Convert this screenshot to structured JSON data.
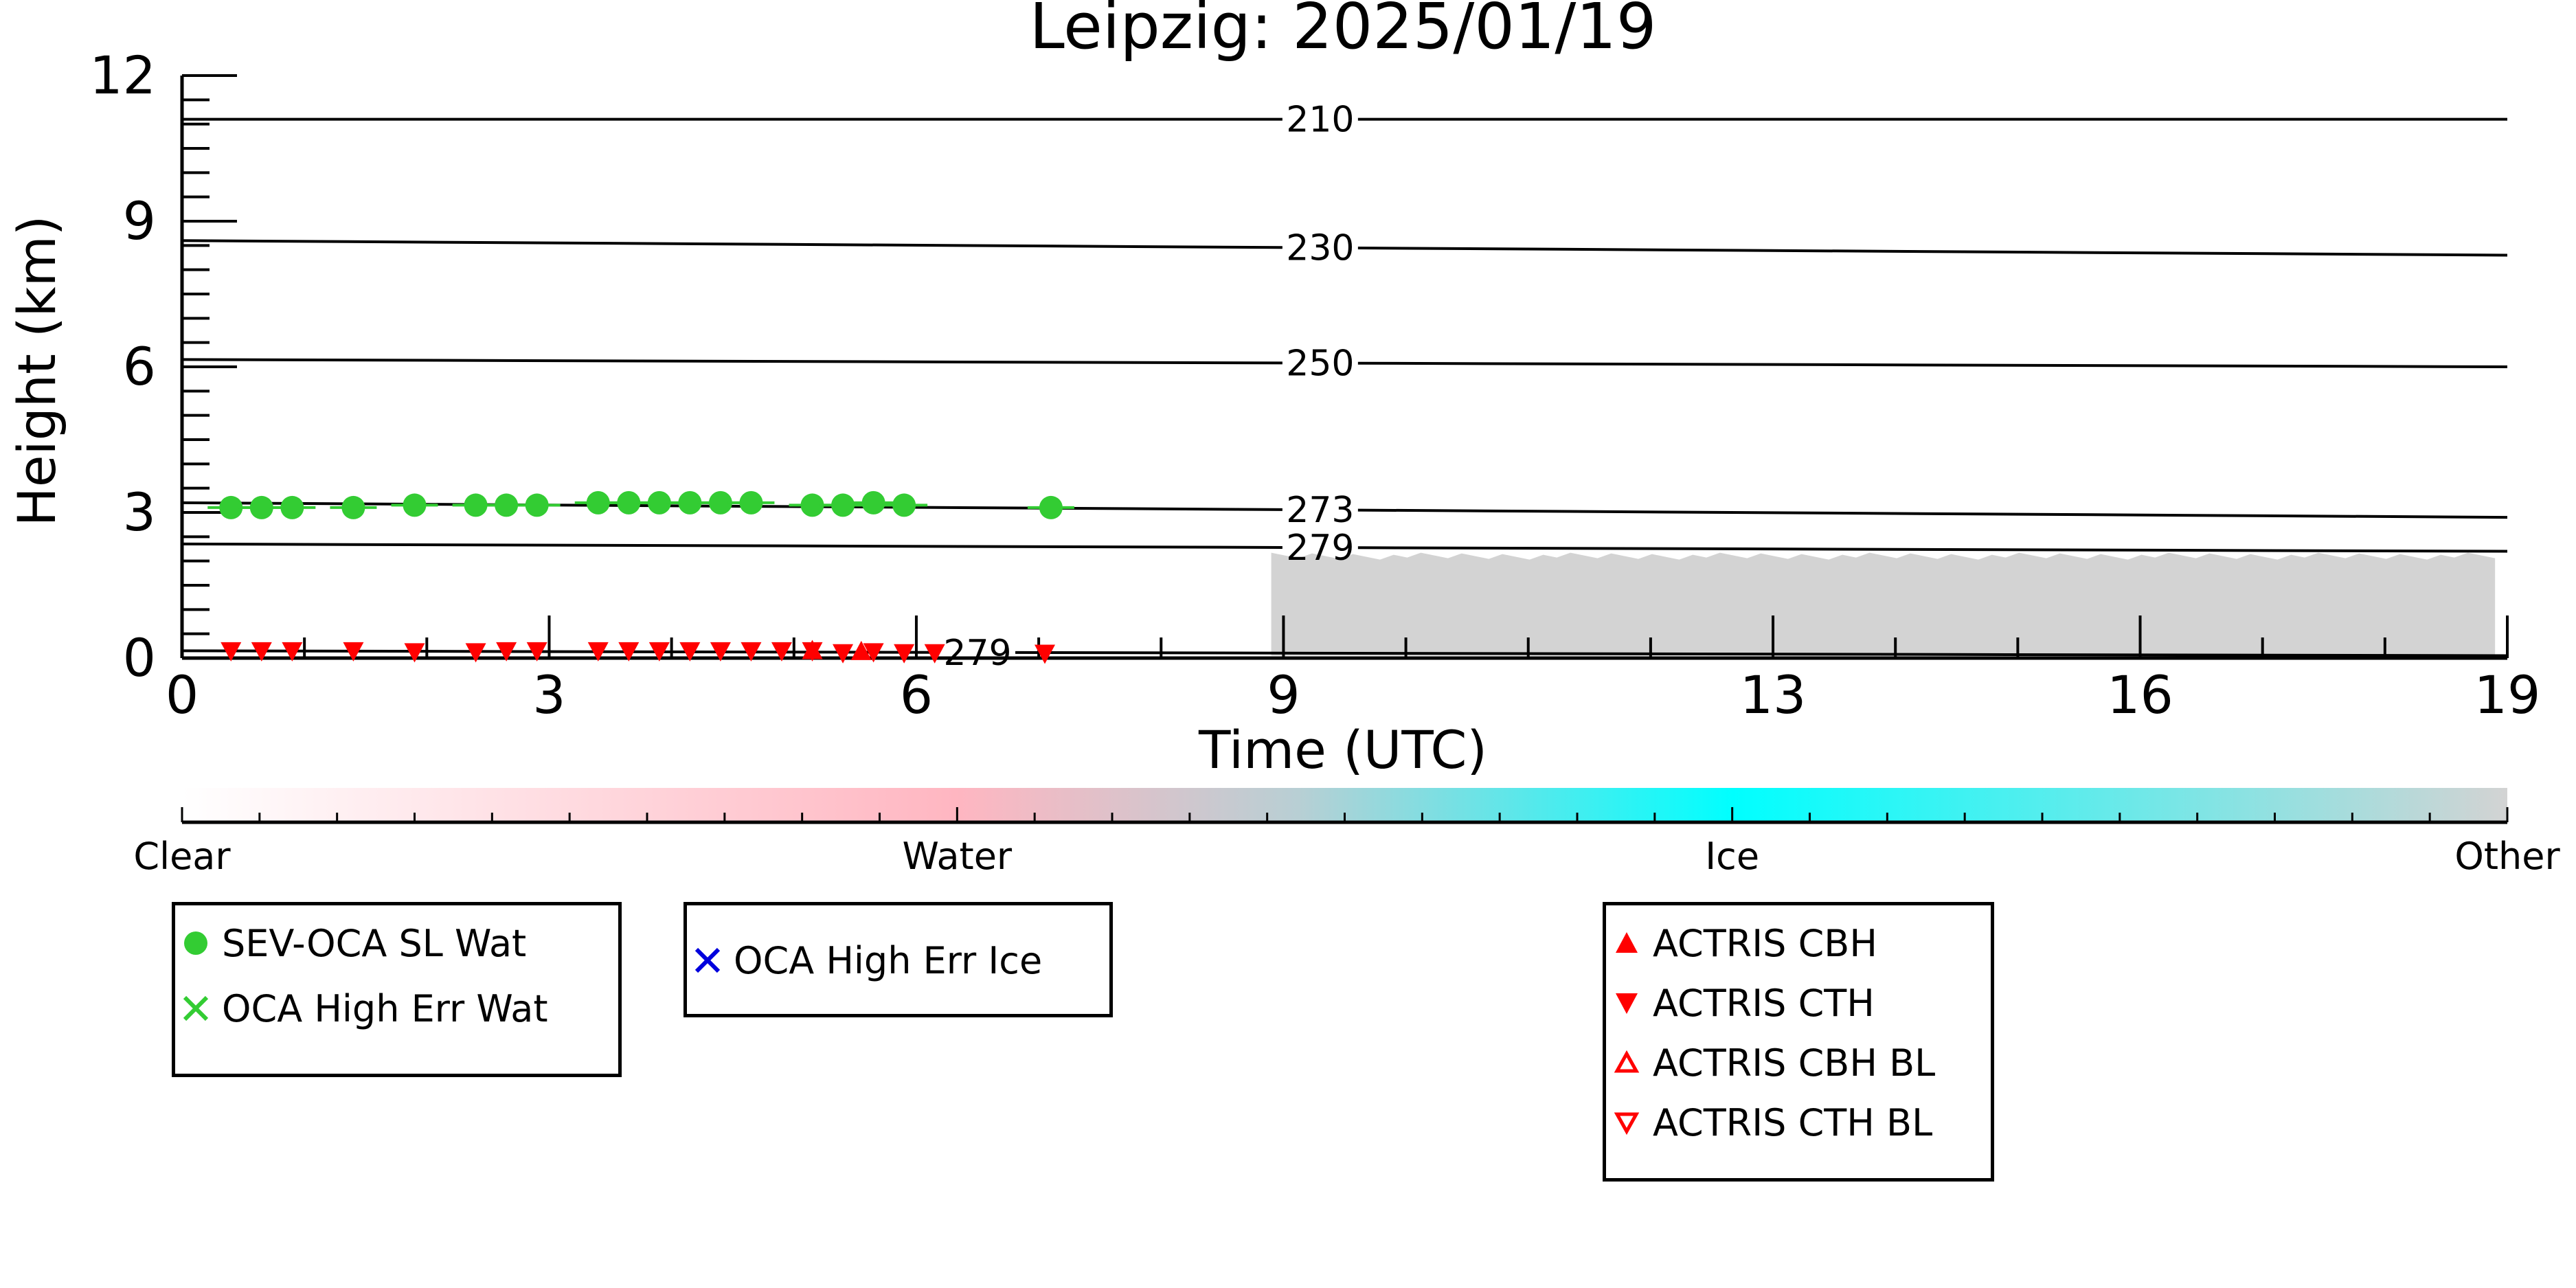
{
  "chart_data": {
    "type": "scatter",
    "title": "Leipzig: 2025/01/19",
    "xlabel": "Time (UTC)",
    "ylabel": "Height (km)",
    "xlim": [
      0,
      19
    ],
    "ylim": [
      0,
      12
    ],
    "x_ticks": [
      0,
      3,
      6,
      9,
      13,
      16,
      19
    ],
    "y_ticks": [
      0,
      3,
      6,
      9,
      12
    ],
    "grid": false,
    "isotherms": [
      {
        "label": "210",
        "y_start": 11.1,
        "y_end": 11.1,
        "label_x": 9.3
      },
      {
        "label": "230",
        "y_start": 8.6,
        "y_end": 8.3,
        "label_x": 9.3
      },
      {
        "label": "250",
        "y_start": 6.15,
        "y_end": 6.0,
        "label_x": 9.3
      },
      {
        "label": "273",
        "y_start": 3.2,
        "y_end": 2.9,
        "label_x": 9.3
      },
      {
        "label": "279",
        "y_start": 2.35,
        "y_end": 2.2,
        "label_x": 9.3
      },
      {
        "label": "279",
        "y_start": 0.15,
        "y_end": 0.05,
        "label_x": 6.5
      }
    ],
    "cloud_mask": {
      "category": "Other",
      "x_start": 8.9,
      "x_end": 18.9,
      "y_bottom": 0.05,
      "y_top": 2.1
    },
    "series": [
      {
        "name": "SEV-OCA SL Wat",
        "color": "#33cc33",
        "marker": "circle",
        "x": [
          0.4,
          0.65,
          0.9,
          1.4,
          1.9,
          2.4,
          2.65,
          2.9,
          3.4,
          3.65,
          3.9,
          4.15,
          4.4,
          4.65,
          5.15,
          5.4,
          5.65,
          5.9,
          7.1
        ],
        "y": [
          3.1,
          3.1,
          3.1,
          3.1,
          3.15,
          3.15,
          3.15,
          3.15,
          3.2,
          3.2,
          3.2,
          3.2,
          3.2,
          3.2,
          3.15,
          3.15,
          3.2,
          3.15,
          3.1
        ]
      },
      {
        "name": "OCA High Err Wat",
        "color": "#33cc33",
        "marker": "x",
        "x": [],
        "y": []
      },
      {
        "name": "OCA High Err Ice",
        "color": "#0000dd",
        "marker": "x",
        "x": [],
        "y": []
      },
      {
        "name": "ACTRIS CBH",
        "color": "#ff0000",
        "marker": "triangle-up",
        "x": [
          5.15,
          5.55
        ],
        "y": [
          0.12,
          0.1
        ]
      },
      {
        "name": "ACTRIS CTH",
        "color": "#ff0000",
        "marker": "triangle-down",
        "x": [
          0.4,
          0.65,
          0.9,
          1.4,
          1.9,
          2.4,
          2.65,
          2.9,
          3.4,
          3.65,
          3.9,
          4.15,
          4.4,
          4.65,
          4.9,
          5.15,
          5.4,
          5.65,
          5.9,
          6.15,
          7.05
        ],
        "y": [
          0.1,
          0.1,
          0.1,
          0.1,
          0.08,
          0.08,
          0.1,
          0.1,
          0.1,
          0.1,
          0.1,
          0.1,
          0.1,
          0.1,
          0.1,
          0.1,
          0.06,
          0.08,
          0.06,
          0.06,
          0.05
        ]
      },
      {
        "name": "ACTRIS CBH BL",
        "color": "#ff0000",
        "marker": "triangle-up-open",
        "x": [],
        "y": []
      },
      {
        "name": "ACTRIS CTH BL",
        "color": "#ff0000",
        "marker": "triangle-down-open",
        "x": [],
        "y": []
      }
    ],
    "colorbar": {
      "labels": [
        "Clear",
        "Water",
        "Ice",
        "Other"
      ],
      "colors": [
        "#ffffff",
        "#ffb6c1",
        "#00ffff",
        "#d3d3d3"
      ]
    },
    "legends": [
      [
        "SEV-OCA SL Wat",
        "OCA High Err Wat"
      ],
      [
        "OCA High Err Ice"
      ],
      [
        "ACTRIS CBH",
        "ACTRIS CTH",
        "ACTRIS CBH BL",
        "ACTRIS CTH BL"
      ]
    ]
  }
}
